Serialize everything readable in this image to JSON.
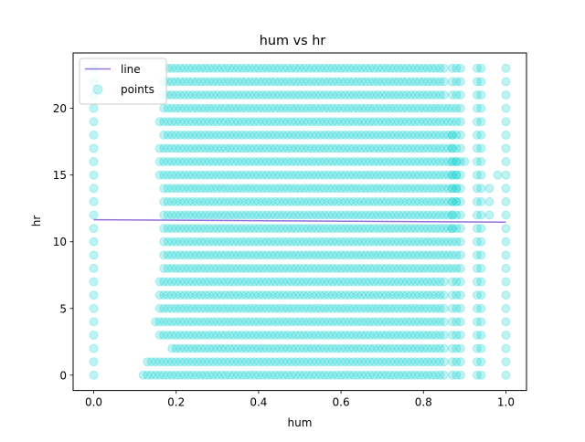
{
  "chart_data": {
    "type": "scatter",
    "title": "hum vs hr",
    "xlabel": "hum",
    "ylabel": "hr",
    "xlim": [
      -0.05,
      1.05
    ],
    "ylim": [
      -1.15,
      24.15
    ],
    "xticks": [
      0.0,
      0.2,
      0.4,
      0.6,
      0.8,
      1.0
    ],
    "xtick_labels": [
      "0.0",
      "0.2",
      "0.4",
      "0.6",
      "0.8",
      "1.0"
    ],
    "yticks": [
      0,
      5,
      10,
      15,
      20
    ],
    "ytick_labels": [
      "0",
      "5",
      "10",
      "15",
      "20"
    ],
    "grid": false,
    "legend_position": "top-left",
    "series": [
      {
        "name": "line",
        "kind": "line",
        "color": "#9370db",
        "x": [
          0.0,
          1.0
        ],
        "y": [
          11.65,
          11.47
        ]
      },
      {
        "name": "points",
        "kind": "scatter",
        "color": "#00ced1",
        "alpha": 0.25,
        "hr_values": [
          0,
          1,
          2,
          3,
          4,
          5,
          6,
          7,
          8,
          9,
          10,
          11,
          12,
          13,
          14,
          15,
          16,
          17,
          18,
          19,
          20,
          21,
          22,
          23
        ],
        "hum_ranges": [
          [
            0.12,
            0.85
          ],
          [
            0.13,
            0.85
          ],
          [
            0.19,
            0.85
          ],
          [
            0.16,
            0.85
          ],
          [
            0.15,
            0.85
          ],
          [
            0.16,
            0.85
          ],
          [
            0.16,
            0.85
          ],
          [
            0.16,
            0.85
          ],
          [
            0.17,
            0.86
          ],
          [
            0.17,
            0.86
          ],
          [
            0.17,
            0.86
          ],
          [
            0.17,
            0.87
          ],
          [
            0.17,
            0.87
          ],
          [
            0.17,
            0.88
          ],
          [
            0.17,
            0.88
          ],
          [
            0.16,
            0.88
          ],
          [
            0.16,
            0.88
          ],
          [
            0.16,
            0.87
          ],
          [
            0.17,
            0.87
          ],
          [
            0.16,
            0.86
          ],
          [
            0.17,
            0.86
          ],
          [
            0.17,
            0.85
          ],
          [
            0.17,
            0.85
          ],
          [
            0.18,
            0.85
          ]
        ],
        "hum_columns": [
          0.0,
          0.87,
          0.88,
          0.89,
          0.93,
          0.94,
          1.0
        ],
        "outliers": [
          {
            "x": 0.98,
            "y": 15
          },
          {
            "x": 0.96,
            "y": 14
          },
          {
            "x": 0.96,
            "y": 13
          },
          {
            "x": 0.96,
            "y": 12
          },
          {
            "x": 0.9,
            "y": 16
          }
        ]
      }
    ]
  }
}
